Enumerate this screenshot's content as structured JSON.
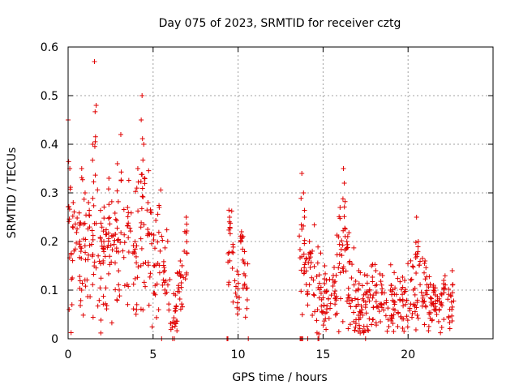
{
  "chart_data": {
    "type": "scatter",
    "title": "Day 075 of 2023, SRMTID for receiver cztg",
    "xlabel": "GPS time / hours",
    "ylabel": "SRMTID / TECUs",
    "xlim": [
      0,
      25
    ],
    "ylim": [
      0,
      0.6
    ],
    "x_ticks": [
      0,
      5,
      10,
      15,
      20
    ],
    "y_ticks": [
      0,
      0.1,
      0.2,
      0.3,
      0.4,
      0.5,
      0.6
    ],
    "x_tick_labels": [
      "0",
      "5",
      "10",
      "15",
      "20"
    ],
    "y_tick_labels": [
      "0",
      "0.1",
      "0.2",
      "0.3",
      "0.4",
      "0.5",
      "0.6"
    ],
    "grid": true,
    "marker": "+",
    "color": "#e00000",
    "series": [
      {
        "name": "SRMTID",
        "segments": [
          {
            "x_start": 0.0,
            "x_end": 5.5,
            "base": 0.17,
            "spread": 0.07,
            "peaks": [
              [
                0.0,
                0.45
              ],
              [
                0.1,
                0.35
              ],
              [
                0.3,
                0.28
              ],
              [
                0.8,
                0.35
              ],
              [
                1.0,
                0.3
              ],
              [
                1.2,
                0.28
              ],
              [
                1.45,
                0.4
              ],
              [
                1.55,
                0.57
              ],
              [
                1.65,
                0.48
              ],
              [
                2.1,
                0.2
              ],
              [
                2.4,
                0.33
              ],
              [
                2.9,
                0.36
              ],
              [
                3.1,
                0.42
              ],
              [
                3.5,
                0.27
              ],
              [
                4.1,
                0.35
              ],
              [
                4.3,
                0.45
              ],
              [
                4.35,
                0.5
              ],
              [
                4.45,
                0.4
              ],
              [
                4.7,
                0.28
              ]
            ]
          },
          {
            "x_start": 5.5,
            "x_end": 6.0,
            "base": 0.14,
            "spread": 0.04,
            "peaks": []
          },
          {
            "x_start": 6.0,
            "x_end": 6.4,
            "base": 0.04,
            "spread": 0.03,
            "peaks": []
          },
          {
            "x_start": 6.4,
            "x_end": 6.8,
            "base": 0.09,
            "spread": 0.04,
            "peaks": [
              [
                6.6,
                0.16
              ]
            ]
          },
          {
            "x_start": 6.8,
            "x_end": 7.0,
            "base": 0.19,
            "spread": 0.04,
            "peaks": [
              [
                6.95,
                0.25
              ]
            ]
          },
          {
            "x_start": 9.4,
            "x_end": 9.8,
            "base": 0.18,
            "spread": 0.05,
            "peaks": [
              [
                9.5,
                0.25
              ]
            ]
          },
          {
            "x_start": 9.8,
            "x_end": 10.1,
            "base": 0.1,
            "spread": 0.03,
            "peaks": []
          },
          {
            "x_start": 10.1,
            "x_end": 10.3,
            "base": 0.18,
            "spread": 0.04,
            "peaks": [
              [
                10.2,
                0.22
              ]
            ]
          },
          {
            "x_start": 10.3,
            "x_end": 10.6,
            "base": 0.12,
            "spread": 0.03,
            "peaks": []
          },
          {
            "x_start": 13.6,
            "x_end": 14.5,
            "base": 0.15,
            "spread": 0.05,
            "peaks": [
              [
                13.75,
                0.34
              ],
              [
                13.85,
                0.3
              ],
              [
                14.2,
                0.2
              ]
            ]
          },
          {
            "x_start": 14.5,
            "x_end": 15.8,
            "base": 0.08,
            "spread": 0.04,
            "peaks": [
              [
                15.1,
                0.15
              ],
              [
                15.6,
                0.13
              ]
            ]
          },
          {
            "x_start": 15.8,
            "x_end": 16.6,
            "base": 0.15,
            "spread": 0.06,
            "peaks": [
              [
                16.0,
                0.27
              ],
              [
                16.2,
                0.35
              ],
              [
                16.25,
                0.32
              ],
              [
                16.4,
                0.2
              ]
            ]
          },
          {
            "x_start": 16.6,
            "x_end": 20.2,
            "base": 0.07,
            "spread": 0.04,
            "peaks": [
              [
                17.1,
                0.14
              ],
              [
                17.6,
                0.13
              ],
              [
                18.1,
                0.14
              ],
              [
                18.5,
                0.13
              ],
              [
                19.0,
                0.11
              ],
              [
                19.8,
                0.12
              ]
            ]
          },
          {
            "x_start": 20.2,
            "x_end": 21.0,
            "base": 0.1,
            "spread": 0.05,
            "peaks": [
              [
                20.5,
                0.25
              ],
              [
                20.6,
                0.2
              ],
              [
                21.0,
                0.16
              ]
            ]
          },
          {
            "x_start": 21.0,
            "x_end": 22.7,
            "base": 0.07,
            "spread": 0.03,
            "peaks": [
              [
                21.5,
                0.11
              ],
              [
                22.1,
                0.12
              ],
              [
                22.6,
                0.14
              ]
            ]
          }
        ],
        "zero_points_x": [
          5.5,
          6.15,
          6.25,
          9.35,
          9.4,
          10.6,
          13.65,
          13.7,
          13.75,
          13.8,
          14.1,
          14.7,
          14.75,
          17.5
        ]
      }
    ]
  }
}
